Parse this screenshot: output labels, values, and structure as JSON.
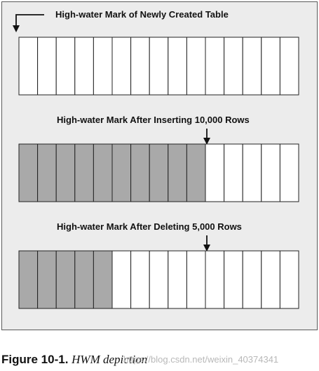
{
  "colors": {
    "panel_background": "#ececec",
    "used_block": "#a9a9a9",
    "free_block": "#ffffff",
    "outline": "#222222"
  },
  "diagram": {
    "block_count": 15,
    "rows": [
      {
        "label": "High-water Mark of Newly Created Table",
        "used_blocks": 0,
        "hwm_after_block": 0
      },
      {
        "label": "High-water Mark After Inserting 10,000 Rows",
        "used_blocks": 10,
        "hwm_after_block": 10
      },
      {
        "label": "High-water Mark After Deleting 5,000 Rows",
        "used_blocks": 5,
        "hwm_after_block": 10
      }
    ]
  },
  "caption": {
    "figure_number": "Figure 10-1.",
    "title": "HWM depiction"
  },
  "watermark": "https://blog.csdn.net/weixin_40374341"
}
